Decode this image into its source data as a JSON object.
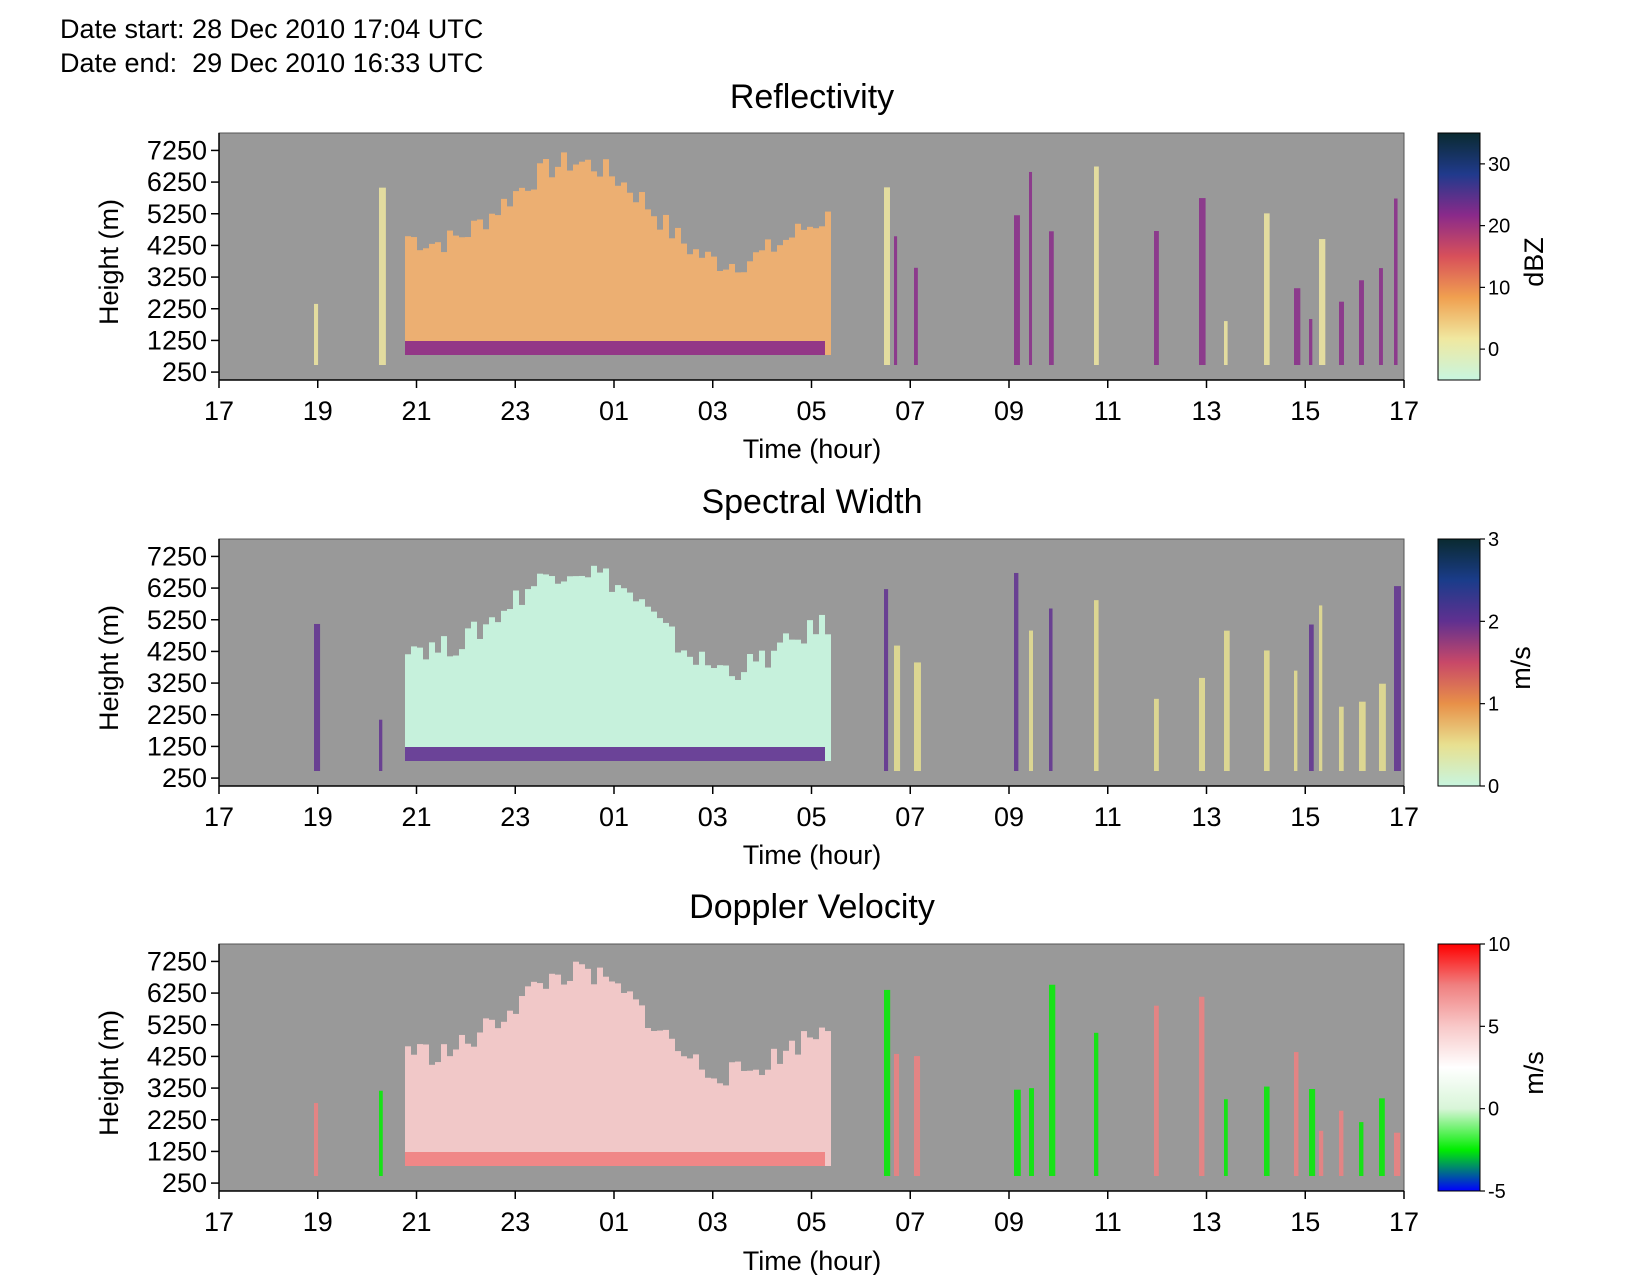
{
  "header": {
    "date_start": "Date start: 28 Dec 2010 17:04 UTC",
    "date_end": "Date end:  29 Dec 2010 16:33 UTC"
  },
  "chart_data": [
    {
      "type": "heatmap",
      "title": "Reflectivity",
      "xlabel": "Time (hour)",
      "ylabel": "Height (m)",
      "x_ticks": [
        "17",
        "19",
        "21",
        "23",
        "01",
        "03",
        "05",
        "07",
        "09",
        "11",
        "13",
        "15",
        "17"
      ],
      "y_ticks": [
        250,
        1250,
        2250,
        3250,
        4250,
        5250,
        6250,
        7250
      ],
      "ylim": [
        0,
        7800
      ],
      "background_color": "#999999",
      "colorbar": {
        "label": "dBZ",
        "ticks": [
          0,
          10,
          20,
          30
        ],
        "range": [
          -5,
          35
        ],
        "colors": [
          "#c8f5df",
          "#f0e8a0",
          "#f0a050",
          "#d8505a",
          "#8a2a8a",
          "#203a8c",
          "#0a2a30"
        ]
      }
    },
    {
      "type": "heatmap",
      "title": "Spectral Width",
      "xlabel": "Time (hour)",
      "ylabel": "Height (m)",
      "x_ticks": [
        "17",
        "19",
        "21",
        "23",
        "01",
        "03",
        "05",
        "07",
        "09",
        "11",
        "13",
        "15",
        "17"
      ],
      "y_ticks": [
        250,
        1250,
        2250,
        3250,
        4250,
        5250,
        6250,
        7250
      ],
      "ylim": [
        0,
        7800
      ],
      "background_color": "#999999",
      "colorbar": {
        "label": "m/s",
        "ticks": [
          0,
          1,
          2,
          3
        ],
        "range": [
          0,
          3
        ],
        "colors": [
          "#c8f5df",
          "#e8e090",
          "#e89048",
          "#c84868",
          "#603090",
          "#1a3c8a",
          "#0a2a30"
        ]
      }
    },
    {
      "type": "heatmap",
      "title": "Doppler Velocity",
      "xlabel": "Time (hour)",
      "ylabel": "Height (m)",
      "x_ticks": [
        "17",
        "19",
        "21",
        "23",
        "01",
        "03",
        "05",
        "07",
        "09",
        "11",
        "13",
        "15",
        "17"
      ],
      "y_ticks": [
        250,
        1250,
        2250,
        3250,
        4250,
        5250,
        6250,
        7250
      ],
      "ylim": [
        0,
        7800
      ],
      "background_color": "#999999",
      "colorbar": {
        "label": "m/s",
        "ticks": [
          -5,
          0,
          5,
          10
        ],
        "range": [
          -5,
          10
        ],
        "colors": [
          "#0000ff",
          "#00ee00",
          "#d8f5d8",
          "#ffffff",
          "#f8c8c8",
          "#f08080",
          "#ff0000"
        ]
      }
    }
  ]
}
